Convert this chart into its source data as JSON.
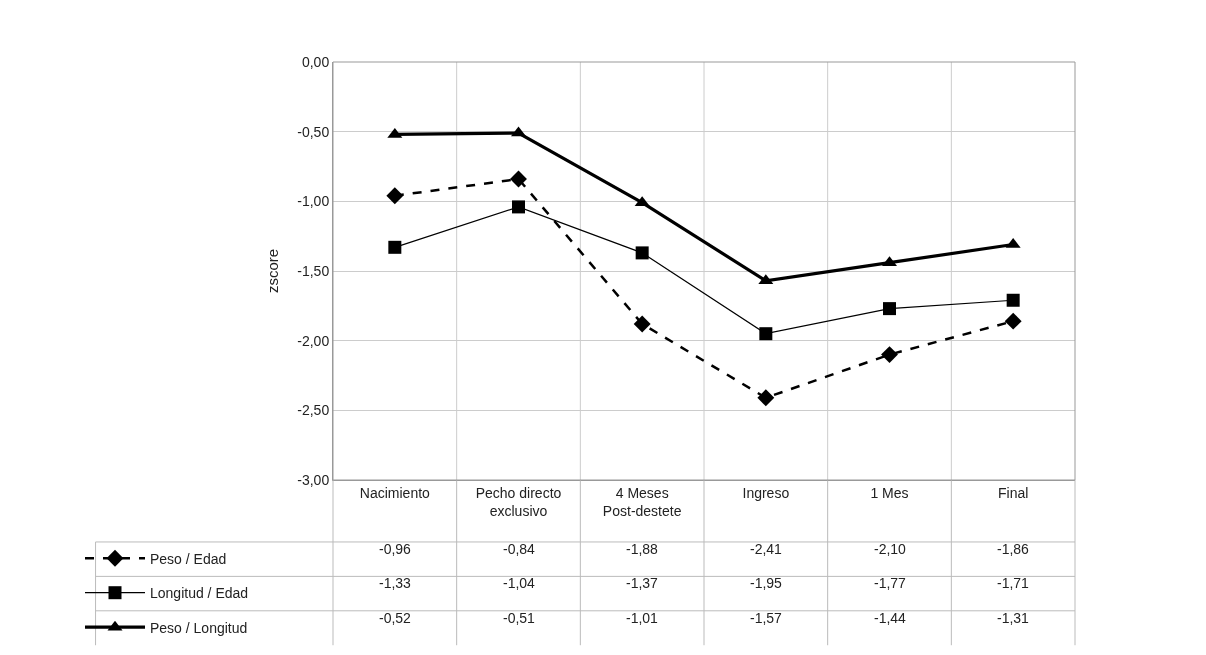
{
  "chart_data": {
    "type": "line",
    "ylabel": "zscore",
    "categories": [
      "Nacimiento",
      "Pecho directo exclusivo",
      "4 Meses Post-destete",
      "Ingreso",
      "1 Mes",
      "Final"
    ],
    "series": [
      {
        "name": "Peso / Edad",
        "color": "#000000",
        "marker": "diamond",
        "line_style": "dashed",
        "values": [
          -0.96,
          -0.84,
          -1.88,
          -2.41,
          -2.1,
          -1.86
        ],
        "value_labels": [
          "-0,96",
          "-0,84",
          "-1,88",
          "-2,41",
          "-2,10",
          "-1,86"
        ]
      },
      {
        "name": "Longitud / Edad",
        "color": "#000000",
        "marker": "square",
        "line_style": "solid",
        "values": [
          -1.33,
          -1.04,
          -1.37,
          -1.95,
          -1.77,
          -1.71
        ],
        "value_labels": [
          "-1,33",
          "-1,04",
          "-1,37",
          "-1,95",
          "-1,77",
          "-1,71"
        ]
      },
      {
        "name": "Peso / Longitud",
        "color": "#000000",
        "marker": "triangle",
        "line_style": "solid",
        "values": [
          -0.52,
          -0.51,
          -1.01,
          -1.57,
          -1.44,
          -1.31
        ],
        "value_labels": [
          "-0,52",
          "-0,51",
          "-1,01",
          "-1,57",
          "-1,44",
          "-1,31"
        ]
      }
    ],
    "ylim": [
      -3,
      0
    ],
    "yticks": [
      {
        "value": -3,
        "label": "-3,00"
      },
      {
        "value": -2.5,
        "label": "-2,50"
      },
      {
        "value": -2,
        "label": "-2,00"
      },
      {
        "value": -1.5,
        "label": "-1,50"
      },
      {
        "value": -1,
        "label": "-1,00"
      },
      {
        "value": -0.5,
        "label": "-0,50"
      },
      {
        "value": 0,
        "label": "0,00"
      }
    ],
    "grid": true,
    "legend": "bottom left"
  }
}
